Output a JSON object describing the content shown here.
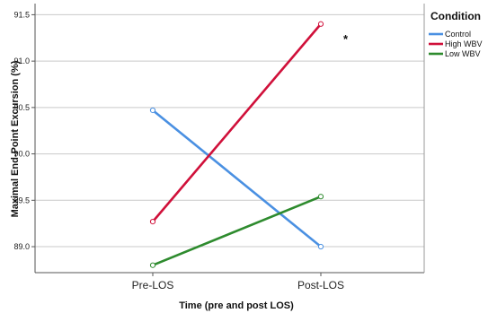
{
  "chart_data": {
    "type": "line",
    "categories": [
      "Pre-LOS",
      "Post-LOS"
    ],
    "series": [
      {
        "name": "Control",
        "values": [
          90.47,
          89.0
        ],
        "color": "#4a90e2"
      },
      {
        "name": "High WBV",
        "values": [
          89.27,
          91.4
        ],
        "color": "#d0103a"
      },
      {
        "name": "Low WBV",
        "values": [
          88.8,
          89.54
        ],
        "color": "#2e8b2e"
      }
    ],
    "xlabel": "Time (pre and post LOS)",
    "ylabel": "Maximal End-Point Excursion (%)",
    "ylim": [
      88.72,
      91.62
    ],
    "yticks": [
      89.0,
      89.5,
      90.0,
      90.5,
      91.0,
      91.5
    ],
    "ytick_labels": [
      "89.0",
      "89.5",
      "90.0",
      "90.5",
      "91.0",
      "91.5"
    ],
    "grid": "horizontal",
    "legend_title": "Condition",
    "legend_position": "right",
    "annotation": {
      "text": "*",
      "x": "Post-LOS",
      "y": 91.28
    }
  }
}
